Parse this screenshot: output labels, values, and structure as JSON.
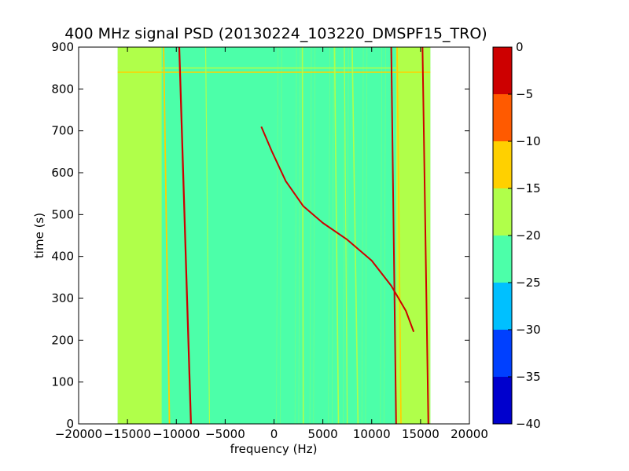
{
  "chart_data": {
    "type": "heatmap",
    "title": "400 MHz signal PSD (20130224_103220_DMSPF15_TRO)",
    "xlabel": "frequency (Hz)",
    "ylabel": "time (s)",
    "xlim": [
      -20000,
      20000
    ],
    "ylim": [
      0,
      900
    ],
    "xticks": [
      -20000,
      -15000,
      -10000,
      -5000,
      0,
      5000,
      10000,
      15000,
      20000
    ],
    "xtick_labels": [
      "−20000",
      "−15000",
      "−10000",
      "−5000",
      "0",
      "5000",
      "10000",
      "15000",
      "20000"
    ],
    "yticks": [
      0,
      100,
      200,
      300,
      400,
      500,
      600,
      700,
      800,
      900
    ],
    "ytick_labels": [
      "0",
      "100",
      "200",
      "300",
      "400",
      "500",
      "600",
      "700",
      "800",
      "900"
    ],
    "data_extent_x": [
      -16000,
      16000
    ],
    "data_extent_y": [
      0,
      900
    ],
    "background_level": -22.5,
    "edge_bands": [
      {
        "x_range": [
          -16000,
          -11500
        ],
        "level": -17.5
      },
      {
        "x_range": [
          12500,
          16000
        ],
        "level": -17.5
      }
    ],
    "spectral_lines": [
      {
        "x_start": -8500,
        "x_end": -9700,
        "level": -2,
        "width_hz": 180
      },
      {
        "x_start": 12500,
        "x_end": 12000,
        "level": -2,
        "width_hz": 160
      },
      {
        "x_start": 15800,
        "x_end": 15200,
        "level": -2,
        "width_hz": 160
      },
      {
        "x_start": -10700,
        "x_end": -11300,
        "level": -12,
        "width_hz": 150
      },
      {
        "x_start": 13000,
        "x_end": 12600,
        "level": -12,
        "width_hz": 140
      },
      {
        "x_start": 3000,
        "x_end": 2900,
        "level": -17.5,
        "width_hz": 130
      },
      {
        "x_start": 6600,
        "x_end": 6200,
        "level": -17.5,
        "width_hz": 130
      },
      {
        "x_start": 8600,
        "x_end": 8000,
        "level": -17.5,
        "width_hz": 130
      },
      {
        "x_start": 7500,
        "x_end": 7200,
        "level": -17.5,
        "width_hz": 90
      },
      {
        "x_start": -6600,
        "x_end": -7000,
        "level": -17.5,
        "width_hz": 90
      }
    ],
    "horizontal_lines": [
      {
        "y": 840,
        "level": -12,
        "x_range": [
          -16000,
          16000
        ]
      },
      {
        "y": 850,
        "level": -17.5,
        "x_range": [
          -16000,
          16000
        ]
      }
    ],
    "doppler_curve": {
      "level": -5,
      "points": [
        {
          "x": -1300,
          "y": 710
        },
        {
          "x": -200,
          "y": 650
        },
        {
          "x": 1200,
          "y": 580
        },
        {
          "x": 3000,
          "y": 520
        },
        {
          "x": 5000,
          "y": 480
        },
        {
          "x": 7500,
          "y": 440
        },
        {
          "x": 10000,
          "y": 390
        },
        {
          "x": 12000,
          "y": 330
        },
        {
          "x": 13500,
          "y": 270
        },
        {
          "x": 14300,
          "y": 220
        }
      ]
    },
    "colorbar": {
      "range": [
        -40,
        0
      ],
      "ticks": [
        0,
        -5,
        -10,
        -15,
        -20,
        -25,
        -30,
        -35,
        -40
      ],
      "tick_labels": [
        "0",
        "−5",
        "−10",
        "−15",
        "−20",
        "−25",
        "−30",
        "−35",
        "−40"
      ],
      "bins": [
        {
          "from": -40,
          "to": -35,
          "color": "#0000cd"
        },
        {
          "from": -35,
          "to": -30,
          "color": "#0040ff"
        },
        {
          "from": -30,
          "to": -25,
          "color": "#00c0ff"
        },
        {
          "from": -25,
          "to": -20,
          "color": "#4cffa9"
        },
        {
          "from": -20,
          "to": -15,
          "color": "#b0ff4a"
        },
        {
          "from": -15,
          "to": -10,
          "color": "#ffd000"
        },
        {
          "from": -10,
          "to": -5,
          "color": "#ff5a00"
        },
        {
          "from": -5,
          "to": 0,
          "color": "#cd0000"
        }
      ]
    }
  }
}
